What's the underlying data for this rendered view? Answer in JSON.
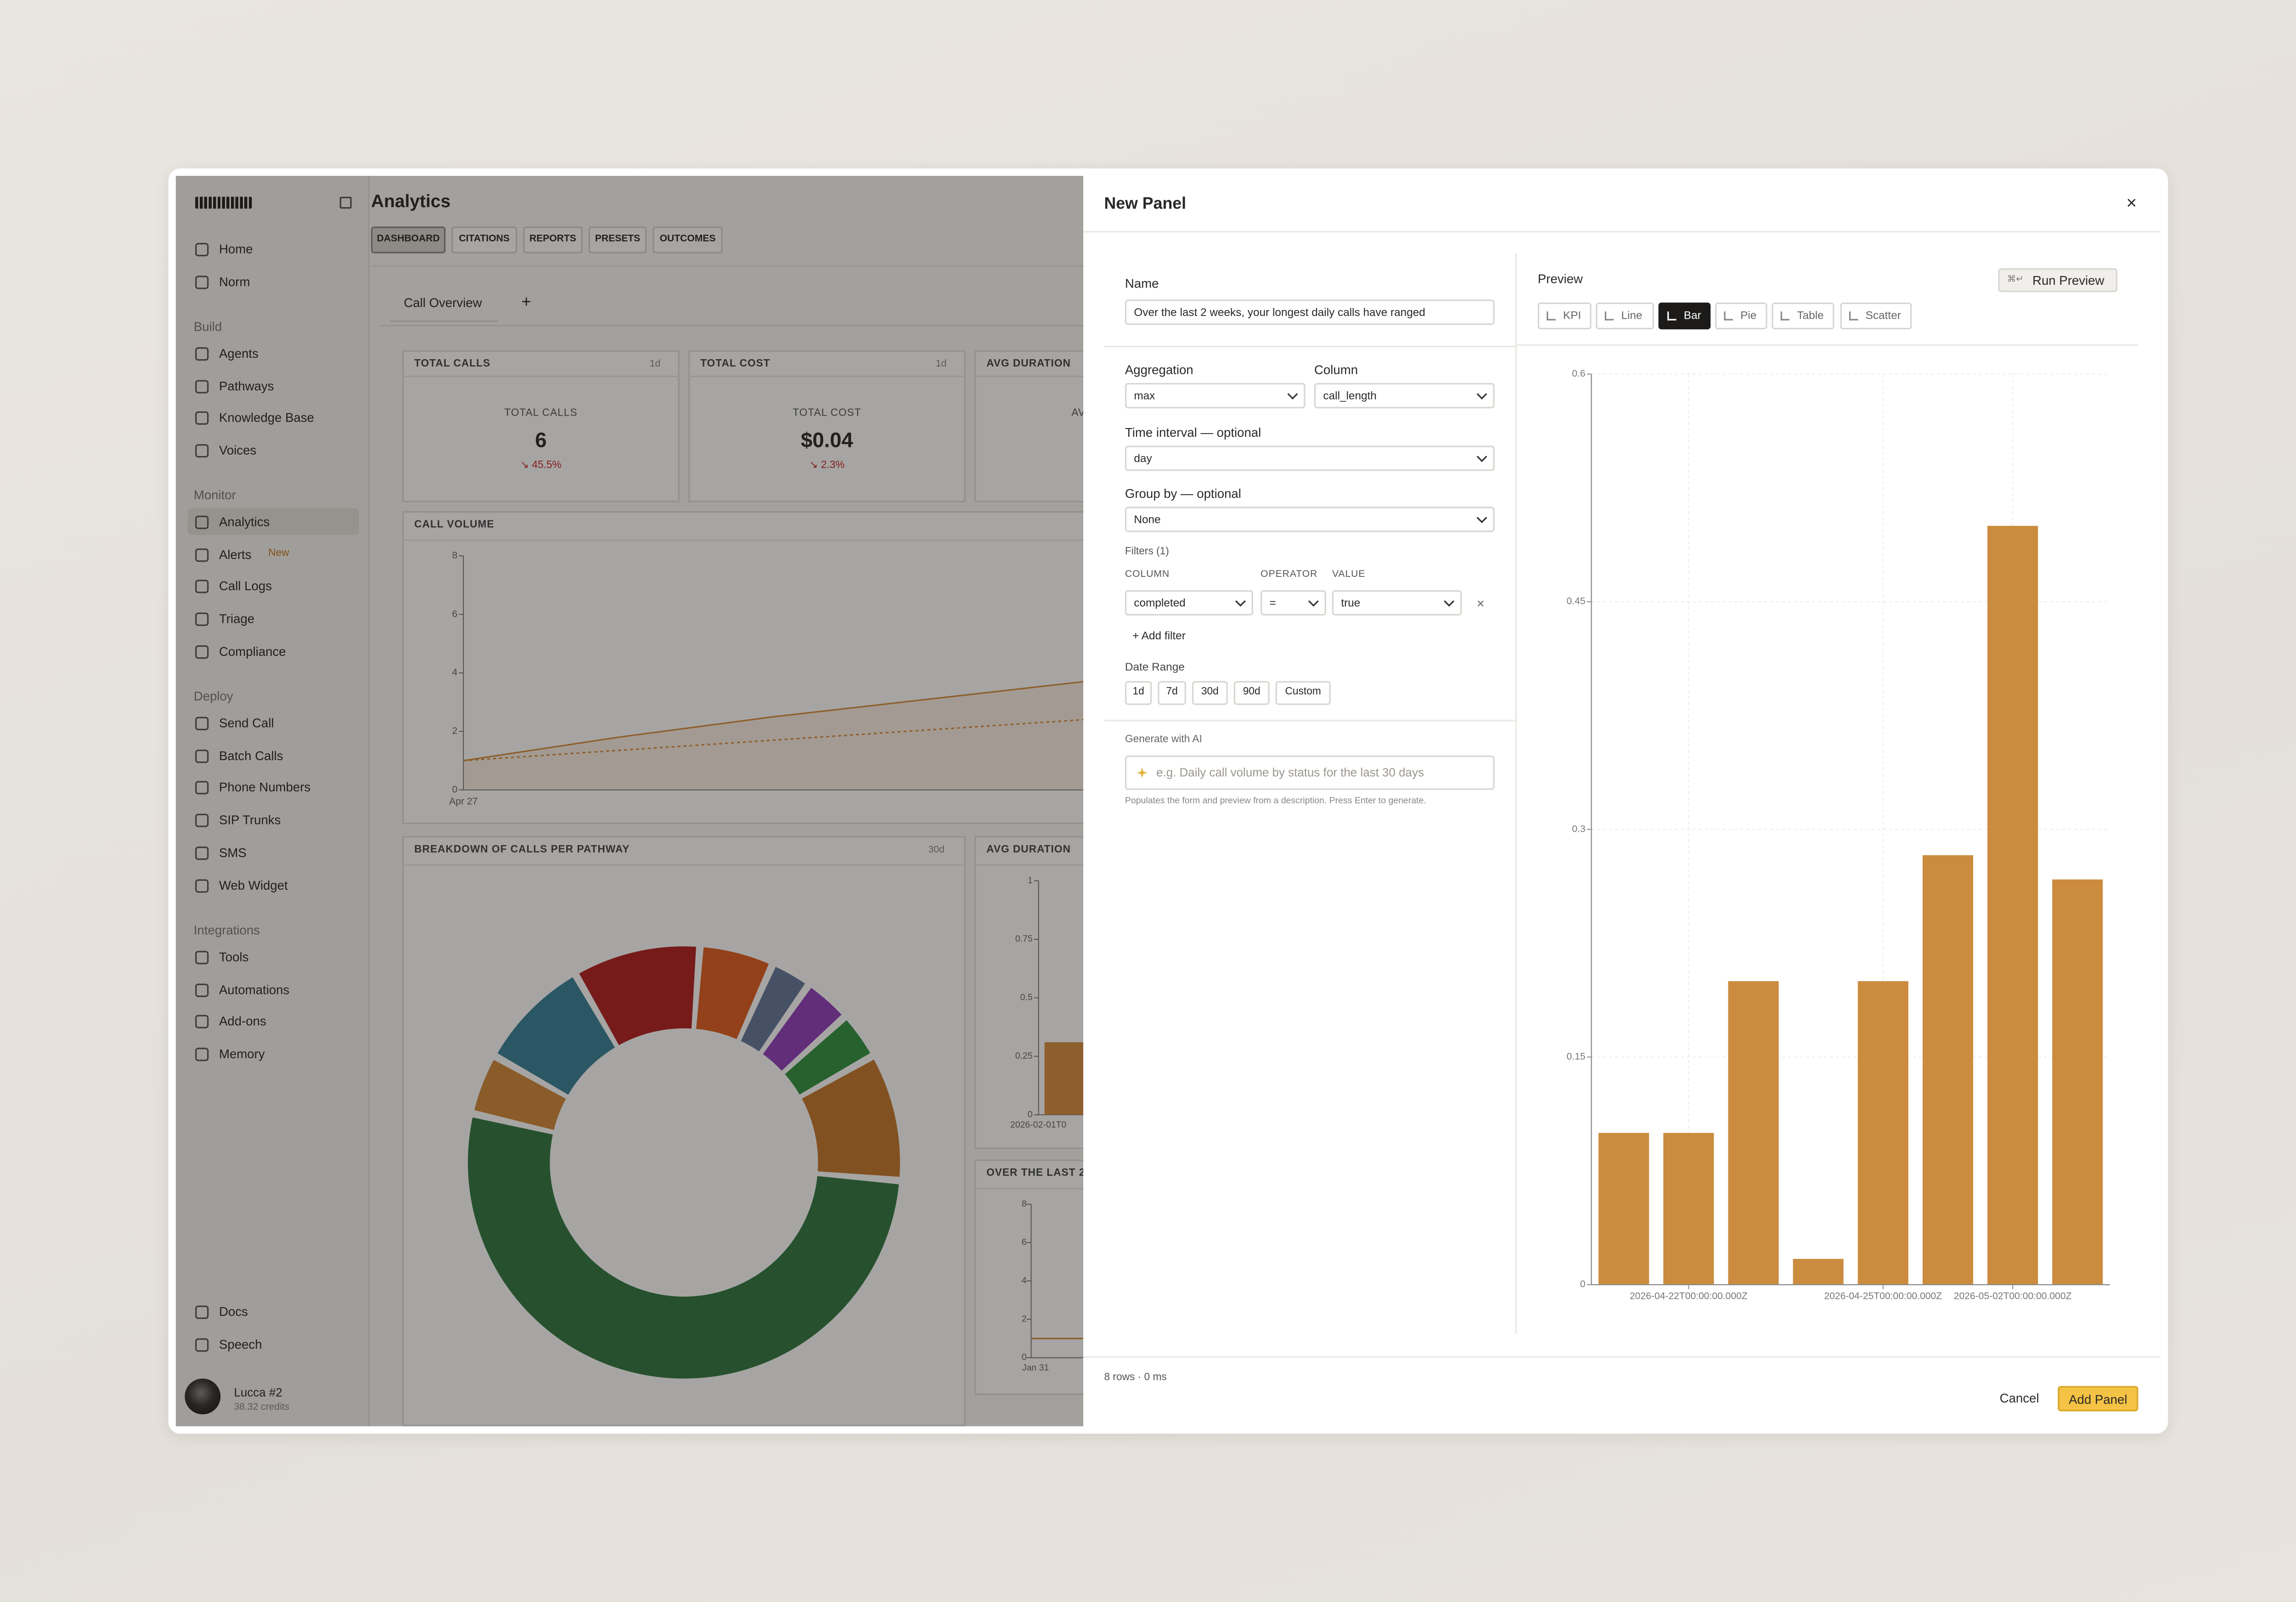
{
  "sidebar": {
    "top_items": [
      "Home",
      "Norm"
    ],
    "sections": [
      {
        "title": "Build",
        "items": [
          "Agents",
          "Pathways",
          "Knowledge Base",
          "Voices"
        ]
      },
      {
        "title": "Monitor",
        "items": [
          "Analytics",
          "Alerts",
          "Call Logs",
          "Triage",
          "Compliance"
        ]
      },
      {
        "title": "Deploy",
        "items": [
          "Send Call",
          "Batch Calls",
          "Phone Numbers",
          "SIP Trunks",
          "SMS",
          "Web Widget"
        ]
      },
      {
        "title": "Integrations",
        "items": [
          "Tools",
          "Automations",
          "Add-ons",
          "Memory"
        ]
      }
    ],
    "alerts_badge": "New",
    "bottom_items": [
      "Docs",
      "Speech"
    ],
    "user": {
      "name": "Lucca #2",
      "credits": "38.32 credits"
    }
  },
  "header": {
    "title": "Analytics",
    "tabs": [
      "DASHBOARD",
      "CITATIONS",
      "REPORTS",
      "PRESETS",
      "OUTCOMES"
    ],
    "active_tab": 0
  },
  "dashboard": {
    "tab": "Call Overview",
    "add_tab": "+",
    "kpis": [
      {
        "title": "TOTAL CALLS",
        "period": "1d",
        "label": "TOTAL CALLS",
        "value": "6",
        "change": "↘ 45.5%"
      },
      {
        "title": "TOTAL COST",
        "period": "1d",
        "label": "TOTAL COST",
        "value": "$0.04",
        "change": "↘ 2.3%"
      },
      {
        "title": "AVG DURATION",
        "label": "AVG DURATION"
      }
    ],
    "call_volume": {
      "title": "CALL VOLUME",
      "ylim": [
        0,
        8
      ],
      "yticks": [
        0,
        2,
        4,
        6,
        8
      ],
      "x_label": "Apr 27",
      "series": [
        {
          "values": [
            1,
            1.8,
            2.5,
            3.1,
            3.7
          ],
          "color": "#d98f3e"
        },
        {
          "values": [
            1,
            1.35,
            1.7,
            2.05,
            2.4
          ],
          "color": "#d98f3e",
          "dashed": true
        }
      ]
    },
    "breakdown": {
      "title": "BREAKDOWN OF CALLS PER PATHWAY",
      "period": "30d",
      "values": [
        9,
        5,
        2.5,
        3,
        3,
        9,
        52,
        4,
        8
      ],
      "colors": [
        "#b22121",
        "#df5e21",
        "#65789a",
        "#9140ba",
        "#32923f",
        "#c5782d",
        "#327841",
        "#d2893b",
        "#398298"
      ]
    },
    "avg_duration": {
      "title": "AVG DURATION",
      "ylim": [
        0,
        1
      ],
      "yticks": [
        0,
        0.25,
        0.5,
        0.75,
        1
      ],
      "x_label": "2026-02-01T0",
      "values": [
        0.31
      ],
      "color": "#d98f3e"
    },
    "last_weeks": {
      "title": "OVER THE LAST 2",
      "ylim": [
        0,
        8
      ],
      "yticks": [
        0,
        2,
        4,
        6,
        8
      ],
      "x_label": "Jan 31",
      "values": [
        1,
        1
      ],
      "color": "#d98f3e"
    }
  },
  "modal": {
    "title": "New Panel",
    "close": "×",
    "form": {
      "name_label": "Name",
      "name_value": "Over the last 2 weeks, your longest daily calls have ranged",
      "aggregation_label": "Aggregation",
      "aggregation": "max",
      "column_label": "Column",
      "column": "call_length",
      "interval_label": "Time interval — optional",
      "interval": "day",
      "group_label": "Group by — optional",
      "group": "None",
      "filters_label": "Filters (1)",
      "filter_headers": [
        "COLUMN",
        "OPERATOR",
        "VALUE"
      ],
      "filters": [
        [
          "completed",
          "=",
          "true"
        ]
      ],
      "add_filter": "+ Add filter",
      "date_range_label": "Date Range",
      "date_ranges": [
        "1d",
        "7d",
        "30d",
        "90d",
        "Custom"
      ],
      "ai_label": "Generate with AI",
      "ai_placeholder": "e.g. Daily call volume by status for the last 30 days",
      "ai_help": "Populates the form and preview from a description. Press Enter to generate."
    },
    "preview": {
      "title": "Preview",
      "run": "Run Preview",
      "run_shortcut": "⌘↵",
      "types": [
        "KPI",
        "Line",
        "Bar",
        "Pie",
        "Table",
        "Scatter"
      ],
      "active_type": 2
    },
    "footer": {
      "status": "8 rows · 0 ms",
      "cancel": "Cancel",
      "submit": "Add Panel"
    }
  },
  "chart_data": {
    "type": "bar",
    "categories": [
      null,
      "2026-04-22T00:00:00.000Z",
      null,
      null,
      "2026-04-25T00:00:00.000Z",
      null,
      "2026-05-02T00:00:00.000Z",
      null
    ],
    "values": [
      0.1,
      0.1,
      0.2,
      0.017,
      0.2,
      0.283,
      0.5,
      0.267
    ],
    "color": "#cb8c3f",
    "ylim": [
      0,
      0.6
    ],
    "yticks": [
      0,
      0.15,
      0.3,
      0.45,
      0.6
    ],
    "grid": true
  }
}
